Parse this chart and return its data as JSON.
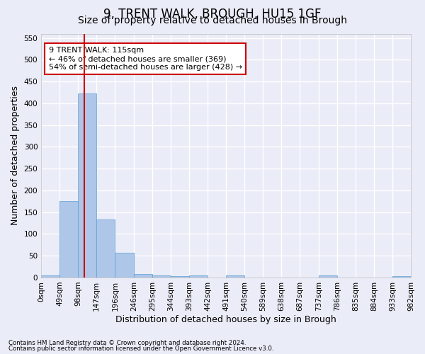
{
  "title1": "9, TRENT WALK, BROUGH, HU15 1GF",
  "title2": "Size of property relative to detached houses in Brough",
  "xlabel": "Distribution of detached houses by size in Brough",
  "ylabel": "Number of detached properties",
  "bin_edges": [
    0,
    49,
    98,
    147,
    196,
    246,
    295,
    344,
    393,
    442,
    491,
    540,
    589,
    638,
    687,
    737,
    786,
    835,
    884,
    933,
    982
  ],
  "bin_labels": [
    "0sqm",
    "49sqm",
    "98sqm",
    "147sqm",
    "196sqm",
    "246sqm",
    "295sqm",
    "344sqm",
    "393sqm",
    "442sqm",
    "491sqm",
    "540sqm",
    "589sqm",
    "638sqm",
    "687sqm",
    "737sqm",
    "786sqm",
    "835sqm",
    "884sqm",
    "933sqm",
    "982sqm"
  ],
  "bar_heights": [
    5,
    175,
    422,
    133,
    57,
    8,
    5,
    3,
    5,
    0,
    5,
    0,
    0,
    0,
    0,
    5,
    0,
    0,
    0,
    3
  ],
  "bar_color": "#aec6e8",
  "bar_edge_color": "#5a9fd4",
  "vline_color": "#cc0000",
  "property_sqm": 115,
  "annotation_text": "9 TRENT WALK: 115sqm\n← 46% of detached houses are smaller (369)\n54% of semi-detached houses are larger (428) →",
  "annotation_box_color": "#ffffff",
  "annotation_edge_color": "#cc0000",
  "ylim": [
    0,
    560
  ],
  "yticks": [
    0,
    50,
    100,
    150,
    200,
    250,
    300,
    350,
    400,
    450,
    500,
    550
  ],
  "footer1": "Contains HM Land Registry data © Crown copyright and database right 2024.",
  "footer2": "Contains public sector information licensed under the Open Government Licence v3.0.",
  "bg_color": "#eaecf7",
  "plot_bg_color": "#eaecf7",
  "grid_color": "#ffffff",
  "title1_fontsize": 12,
  "title2_fontsize": 10,
  "tick_fontsize": 7.5,
  "label_fontsize": 9
}
